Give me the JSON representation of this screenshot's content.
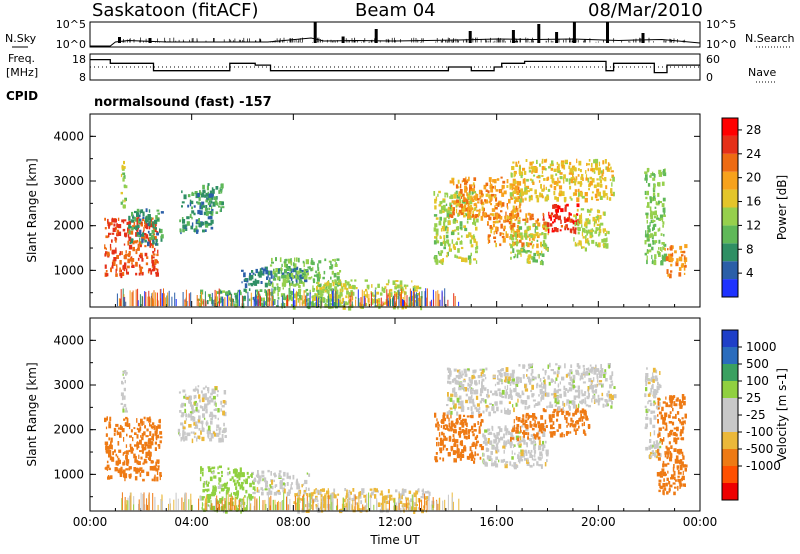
{
  "header": {
    "station": "Saskatoon (fitACF)",
    "beam": "Beam 04",
    "date": "08/Mar/2010"
  },
  "labels": {
    "nsky": "N.Sky",
    "nsearch": "N.Search",
    "freq": "Freq.",
    "mhz": "[MHz]",
    "nave": "Nave",
    "cpid": "CPID",
    "nsky_ticks": [
      "10^5",
      "10^0"
    ],
    "freq_ticks": [
      "18",
      "8"
    ],
    "nave_ticks": [
      "60",
      "0"
    ]
  },
  "cpid_text": "normalsound (fast) -157",
  "colors": {
    "power": [
      "#1f33ff",
      "#2b5fa8",
      "#2f8f64",
      "#5fb858",
      "#96d04d",
      "#e3c52a",
      "#f7a21c",
      "#ee6b12",
      "#e53018",
      "#ff0000"
    ],
    "velocity_low_to_high": [
      "#ee0000",
      "#ff5000",
      "#ee7a14",
      "#ebb83a",
      "#c8c8c8",
      "#c8c8c8",
      "#90d040",
      "#3aa060",
      "#2a6cbd",
      "#1f3fc8"
    ]
  },
  "chart_data": [
    {
      "type": "line",
      "title": "N.Sky",
      "x_range": [
        0,
        24
      ],
      "ylim": [
        0,
        5
      ],
      "ylabel_ticks": [
        "10^5",
        "10^0"
      ],
      "x": [
        0,
        0.8,
        1.0,
        1.5,
        3.0,
        5.0,
        7.0,
        8.7,
        9.2,
        10.5,
        12.0,
        14.5,
        16.0,
        17.5,
        19.0,
        20.8,
        21.5,
        22.5,
        24
      ],
      "values": [
        0.2,
        0.2,
        1.0,
        1.3,
        1.0,
        1.0,
        1.0,
        1.8,
        1.2,
        1.3,
        1.2,
        1.4,
        1.6,
        1.5,
        1.6,
        1.3,
        1.4,
        1.5,
        0.8
      ],
      "spikes": [
        [
          1.1,
          2.0
        ],
        [
          2.3,
          1.8
        ],
        [
          8.8,
          5.0
        ],
        [
          9.9,
          2.1
        ],
        [
          11.2,
          3.6
        ],
        [
          14.9,
          3.2
        ],
        [
          16.6,
          3.4
        ],
        [
          17.6,
          4.6
        ],
        [
          18.3,
          3.0
        ],
        [
          19.0,
          5.0
        ],
        [
          20.3,
          5.0
        ],
        [
          21.7,
          2.8
        ]
      ]
    },
    {
      "type": "line",
      "title": "Freq.",
      "x_range": [
        0,
        24
      ],
      "ylim": [
        6,
        20
      ],
      "ticks": [
        "18",
        "8"
      ],
      "series": [
        {
          "name": "Freq.",
          "steps": [
            [
              0,
              17
            ],
            [
              0.8,
              15
            ],
            [
              1.5,
              15
            ],
            [
              2.5,
              11
            ],
            [
              5.2,
              11
            ],
            [
              5.5,
              15
            ],
            [
              6.5,
              14
            ],
            [
              7.1,
              11
            ],
            [
              8.0,
              11
            ],
            [
              8.5,
              11
            ],
            [
              10.3,
              11
            ],
            [
              12.0,
              11
            ],
            [
              13.9,
              11
            ],
            [
              14.1,
              13
            ],
            [
              15.0,
              11
            ],
            [
              15.9,
              13
            ],
            [
              16.2,
              15
            ],
            [
              17.1,
              16
            ],
            [
              20.3,
              11
            ],
            [
              20.6,
              15
            ],
            [
              21.4,
              15
            ],
            [
              22.2,
              10
            ],
            [
              22.7,
              14
            ],
            [
              24,
              14
            ]
          ]
        },
        {
          "name": "Nave",
          "dotted": true,
          "level": 13
        }
      ]
    },
    {
      "type": "heatmap",
      "title": "Power",
      "xlabel": "",
      "ylabel": "Slant Range [km]",
      "x_range_hours": [
        0,
        24
      ],
      "ylim": [
        180,
        4500
      ],
      "yticks": [
        1000,
        2000,
        3000,
        4000
      ],
      "colorbar_label": "Power [dB]",
      "colorbar_ticks": [
        4,
        8,
        12,
        16,
        20,
        24,
        28
      ],
      "colorbar_range": [
        0,
        30
      ],
      "patches": [
        {
          "t": [
            0.55,
            2.65
          ],
          "r": [
            900,
            2200
          ],
          "value": 24
        },
        {
          "t": [
            1.2,
            1.35
          ],
          "r": [
            2400,
            3500
          ],
          "value": 14
        },
        {
          "t": [
            1.5,
            2.8
          ],
          "r": [
            1600,
            2400
          ],
          "value": 8
        },
        {
          "t": [
            3.5,
            4.8
          ],
          "r": [
            1900,
            2800
          ],
          "value": 7
        },
        {
          "t": [
            4.4,
            5.2
          ],
          "r": [
            2300,
            3000
          ],
          "value": 9
        },
        {
          "t": [
            5.8,
            8.5
          ],
          "r": [
            700,
            1100
          ],
          "value": 6
        },
        {
          "t": [
            4.2,
            7.0
          ],
          "r": [
            250,
            600
          ],
          "value": 10
        },
        {
          "t": [
            7.0,
            9.8
          ],
          "r": [
            200,
            1300
          ],
          "value": 12
        },
        {
          "t": [
            8.7,
            13.0
          ],
          "r": [
            200,
            800
          ],
          "value": 15
        },
        {
          "t": [
            13.5,
            15.2
          ],
          "r": [
            1200,
            2800
          ],
          "value": 14
        },
        {
          "t": [
            14.1,
            16.9
          ],
          "r": [
            2200,
            3100
          ],
          "value": 20
        },
        {
          "t": [
            15.6,
            17.6
          ],
          "r": [
            1600,
            2300
          ],
          "value": 20
        },
        {
          "t": [
            16.5,
            18.0
          ],
          "r": [
            1200,
            2100
          ],
          "value": 14
        },
        {
          "t": [
            17.8,
            19.2
          ],
          "r": [
            1900,
            2500
          ],
          "value": 26
        },
        {
          "t": [
            16.5,
            20.6
          ],
          "r": [
            2600,
            3500
          ],
          "value": 17
        },
        {
          "t": [
            19.0,
            20.4
          ],
          "r": [
            1500,
            2400
          ],
          "value": 15
        },
        {
          "t": [
            21.8,
            22.6
          ],
          "r": [
            1200,
            3300
          ],
          "value": 12
        },
        {
          "t": [
            22.6,
            23.4
          ],
          "r": [
            900,
            1600
          ],
          "value": 21
        }
      ]
    },
    {
      "type": "heatmap",
      "title": "Velocity",
      "xlabel": "Time UT",
      "ylabel": "Slant Range [km]",
      "x_range_hours": [
        0,
        24
      ],
      "ylim": [
        180,
        4500
      ],
      "yticks": [
        1000,
        2000,
        3000,
        4000
      ],
      "colorbar_label": "Velocity [m s-1]",
      "colorbar_ticks": [
        1000,
        500,
        100,
        25,
        -25,
        -100,
        -500,
        -1000
      ],
      "xticks": [
        "00:00",
        "04:00",
        "08:00",
        "12:00",
        "16:00",
        "20:00",
        "00:00"
      ],
      "patches": [
        {
          "t": [
            0.55,
            2.75
          ],
          "r": [
            900,
            2300
          ],
          "value": -200
        },
        {
          "t": [
            1.2,
            1.4
          ],
          "r": [
            2400,
            3400
          ],
          "value": 10
        },
        {
          "t": [
            3.4,
            5.3
          ],
          "r": [
            1800,
            3000
          ],
          "value": 0
        },
        {
          "t": [
            4.3,
            6.4
          ],
          "r": [
            200,
            1200
          ],
          "value": 50
        },
        {
          "t": [
            6.3,
            8.6
          ],
          "r": [
            600,
            1100
          ],
          "value": 0
        },
        {
          "t": [
            8.0,
            13.5
          ],
          "r": [
            200,
            700
          ],
          "value": -30
        },
        {
          "t": [
            13.5,
            15.4
          ],
          "r": [
            1300,
            2400
          ],
          "value": -200
        },
        {
          "t": [
            14.0,
            16.8
          ],
          "r": [
            2400,
            3400
          ],
          "value": 0
        },
        {
          "t": [
            15.4,
            18.0
          ],
          "r": [
            1200,
            2100
          ],
          "value": 0
        },
        {
          "t": [
            16.5,
            17.8
          ],
          "r": [
            1800,
            2400
          ],
          "value": -200
        },
        {
          "t": [
            17.8,
            19.6
          ],
          "r": [
            1900,
            2500
          ],
          "value": -300
        },
        {
          "t": [
            16.8,
            20.6
          ],
          "r": [
            2500,
            3500
          ],
          "value": 0
        },
        {
          "t": [
            21.8,
            22.4
          ],
          "r": [
            1400,
            3400
          ],
          "value": 0
        },
        {
          "t": [
            22.3,
            23.4
          ],
          "r": [
            600,
            2800
          ],
          "value": -150
        }
      ]
    }
  ]
}
